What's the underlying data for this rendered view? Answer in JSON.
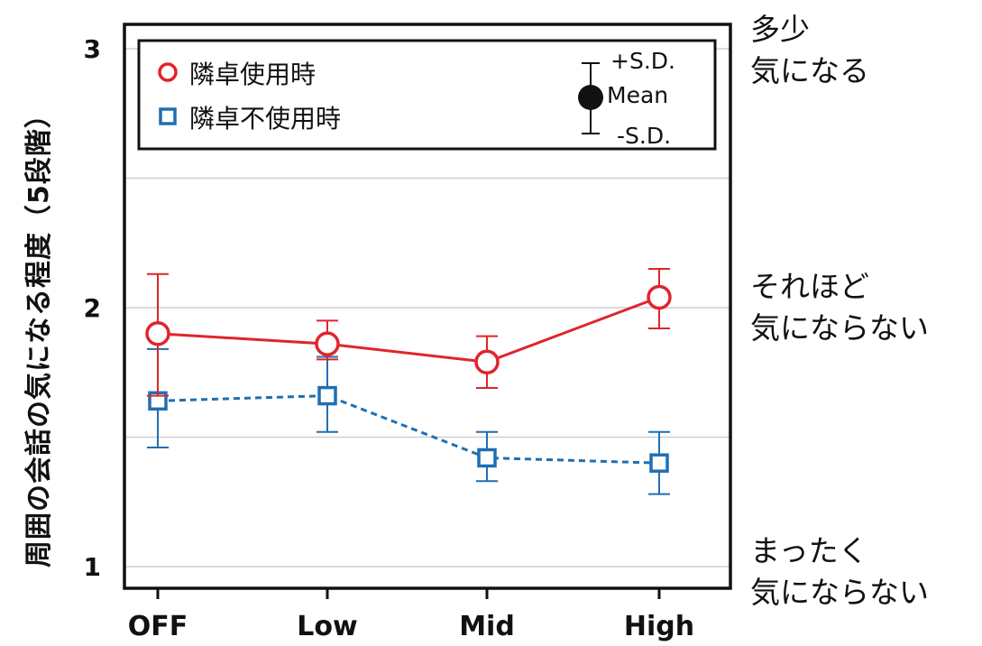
{
  "chart_data": {
    "type": "line",
    "ylabel": "周囲の会話の気になる程度（5段階）",
    "ylim": [
      0.9,
      3.05
    ],
    "yticks": [
      "1",
      "2",
      "3"
    ],
    "ytick_values": [
      1,
      2,
      3
    ],
    "grid_values": [
      1,
      1.5,
      2,
      2.5,
      3
    ],
    "categories": [
      "OFF",
      "Low",
      "Mid",
      "High"
    ],
    "series": [
      {
        "name": "隣卓使用時",
        "marker": "circle",
        "line": "solid",
        "color": "#e0242b",
        "mean": [
          1.9,
          1.86,
          1.79,
          2.04
        ],
        "upper": [
          2.13,
          1.95,
          1.89,
          2.15
        ],
        "lower": [
          1.66,
          1.8,
          1.69,
          1.92
        ]
      },
      {
        "name": "隣卓不使用時",
        "marker": "square",
        "line": "dashed",
        "color": "#1f6fb2",
        "mean": [
          1.64,
          1.66,
          1.42,
          1.4
        ],
        "upper": [
          1.84,
          1.81,
          1.52,
          1.52
        ],
        "lower": [
          1.46,
          1.52,
          1.33,
          1.28
        ]
      }
    ],
    "legend": {
      "position": "top-left",
      "key_plus": "+S.D.",
      "key_mean": "Mean",
      "key_minus": "-S.D."
    },
    "right_annotations": {
      "top_line1": "多少",
      "top_line2": "気になる",
      "mid_line1": "それほど",
      "mid_line2": "気にならない",
      "bottom_line1": "まったく",
      "bottom_line2": "気にならない"
    }
  }
}
